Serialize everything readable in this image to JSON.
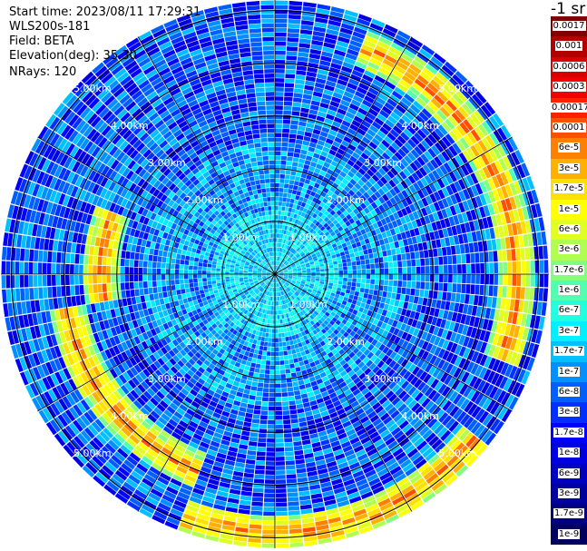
{
  "header": {
    "start_time": "Start time: 2023/08/11 17:29:31",
    "instrument": "WLS200s-181",
    "field": "Field: BETA",
    "elevation": "Elevation(deg): 35.30",
    "nrays": "NRays: 120"
  },
  "units_label": "-1 sr",
  "chart_data": {
    "type": "heatmap",
    "projection": "polar-ppi",
    "field": "BETA",
    "elevation_deg": 35.3,
    "n_rays": 120,
    "max_range_km": 5.2,
    "range_ring_labels": [
      "1.00km",
      "2.00km",
      "3.00km",
      "4.00km",
      "5.00km"
    ],
    "range_rings_km": [
      1,
      2,
      3,
      4,
      5
    ],
    "spokes_deg": [
      0,
      30,
      60,
      90,
      120,
      150,
      180,
      210,
      240,
      270,
      300,
      330
    ],
    "grid": true,
    "colorbar_labels": [
      "0.0017",
      "0.001",
      "0.0006",
      "0.0003",
      "0.00017",
      "0.0001",
      "6e-5",
      "3e-5",
      "1.7e-5",
      "1e-5",
      "6e-6",
      "3e-6",
      "1.7e-6",
      "1e-6",
      "6e-7",
      "3e-7",
      "1.7e-7",
      "1e-7",
      "6e-8",
      "3e-8",
      "1.7e-8",
      "1e-8",
      "6e-9",
      "3e-9",
      "1.7e-9",
      "1e-9"
    ],
    "colorbar_colors": [
      "#800000",
      "#b00000",
      "#d80000",
      "#f00000",
      "#ff2000",
      "#ff5000",
      "#ff8000",
      "#ffb000",
      "#ffe000",
      "#ffff00",
      "#e0ff20",
      "#b0ff50",
      "#80ff80",
      "#50ffb0",
      "#20ffe0",
      "#00f0ff",
      "#00c0ff",
      "#0090ff",
      "#0060ff",
      "#0030ff",
      "#0000ff",
      "#0000e0",
      "#0000c0",
      "#0000a0",
      "#000080",
      "#000060"
    ],
    "colorbar_position": "right",
    "features": [
      {
        "description": "high-backscatter arc (yellow/red) at ~4.5-5.0km range",
        "azimuth_start_deg": 20,
        "azimuth_end_deg": 110,
        "range_km": 4.6
      },
      {
        "description": "high-backscatter arc (yellow/red) at ~5.0km range",
        "azimuth_start_deg": 130,
        "azimuth_end_deg": 200,
        "range_km": 4.9
      },
      {
        "description": "high-backscatter arc (yellow) at ~3.5-4.5km range",
        "azimuth_start_deg": 200,
        "azimuth_end_deg": 260,
        "range_km": 4.0
      },
      {
        "description": "high-backscatter arc (yellow) at ~2.5-3.5km range",
        "azimuth_start_deg": 260,
        "azimuth_end_deg": 290,
        "range_km": 3.3
      }
    ]
  }
}
